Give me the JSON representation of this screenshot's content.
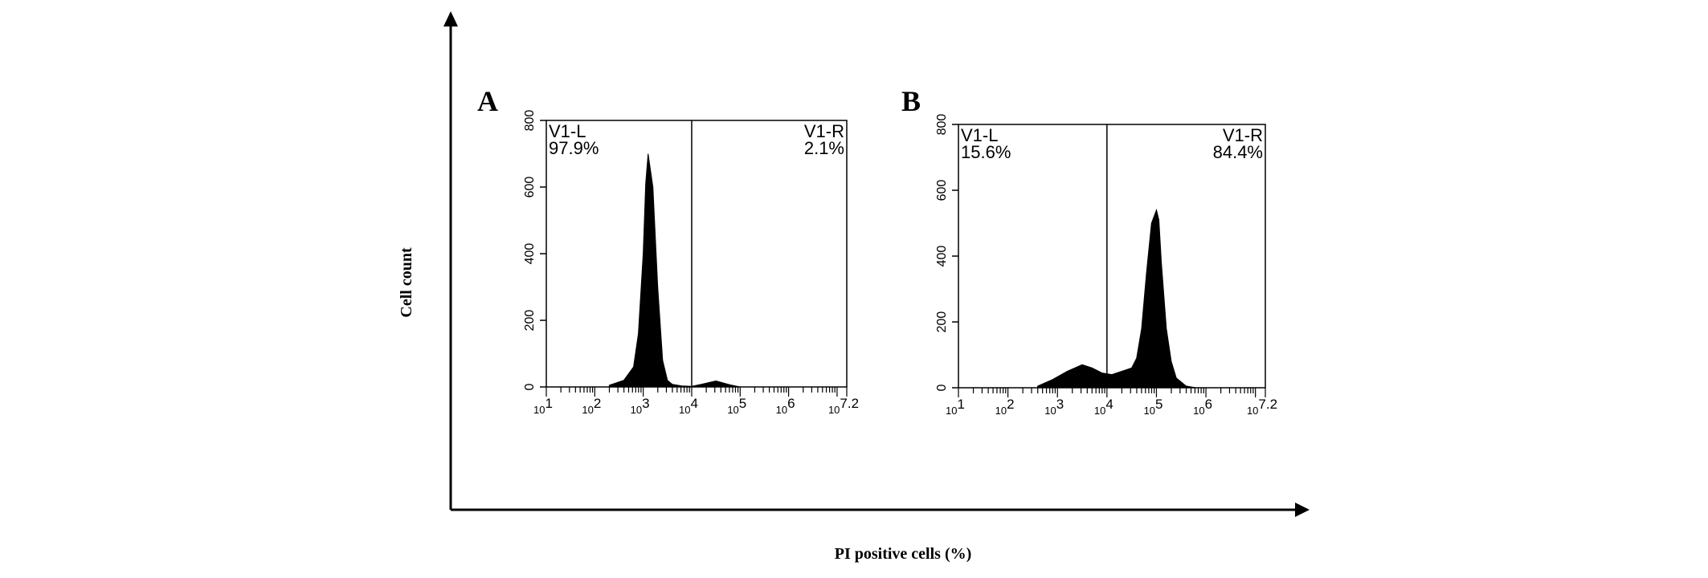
{
  "figure": {
    "ylabel": "Cell count",
    "xlabel": "PI positive cells  (%)"
  },
  "chart_data": [
    {
      "type": "area",
      "panel_label": "A",
      "x_scale": "log10",
      "xlim": [
        1,
        7.2
      ],
      "ylim": [
        0,
        800
      ],
      "y_ticks": [
        0,
        200,
        400,
        600,
        800
      ],
      "x_tick_labels": [
        {
          "base": "10",
          "exp": "1"
        },
        {
          "base": "10",
          "exp": "2"
        },
        {
          "base": "10",
          "exp": "3"
        },
        {
          "base": "10",
          "exp": "4"
        },
        {
          "base": "10",
          "exp": "5"
        },
        {
          "base": "10",
          "exp": "6"
        },
        {
          "base": "10",
          "exp": "7.2"
        }
      ],
      "gate_x": 4,
      "gates": [
        {
          "name": "V1-L",
          "percent": "97.9%"
        },
        {
          "name": "V1-R",
          "percent": "2.1%"
        }
      ],
      "series": [
        {
          "x": [
            2.3,
            2.6,
            2.8,
            2.9,
            3.0,
            3.05,
            3.1,
            3.2,
            3.25,
            3.3,
            3.4,
            3.5,
            3.6,
            3.8,
            4.0,
            4.2,
            4.5,
            4.8,
            5.0
          ],
          "y": [
            5,
            20,
            60,
            160,
            400,
            610,
            700,
            600,
            450,
            300,
            80,
            20,
            8,
            3,
            2,
            8,
            18,
            6,
            0
          ]
        }
      ]
    },
    {
      "type": "area",
      "panel_label": "B",
      "x_scale": "log10",
      "xlim": [
        1,
        7.2
      ],
      "ylim": [
        0,
        800
      ],
      "y_ticks": [
        0,
        200,
        400,
        600,
        800
      ],
      "x_tick_labels": [
        {
          "base": "10",
          "exp": "1"
        },
        {
          "base": "10",
          "exp": "2"
        },
        {
          "base": "10",
          "exp": "3"
        },
        {
          "base": "10",
          "exp": "4"
        },
        {
          "base": "10",
          "exp": "5"
        },
        {
          "base": "10",
          "exp": "6"
        },
        {
          "base": "10",
          "exp": "7.2"
        }
      ],
      "gate_x": 4,
      "gates": [
        {
          "name": "V1-L",
          "percent": "15.6%"
        },
        {
          "name": "V1-R",
          "percent": "84.4%"
        }
      ],
      "series": [
        {
          "x": [
            2.6,
            2.9,
            3.2,
            3.5,
            3.7,
            3.9,
            4.1,
            4.3,
            4.5,
            4.6,
            4.7,
            4.8,
            4.9,
            5.0,
            5.05,
            5.1,
            5.2,
            5.3,
            5.4,
            5.6,
            5.8
          ],
          "y": [
            5,
            25,
            50,
            70,
            60,
            45,
            40,
            50,
            60,
            90,
            180,
            350,
            500,
            540,
            510,
            380,
            180,
            80,
            30,
            5,
            0
          ]
        }
      ]
    }
  ]
}
